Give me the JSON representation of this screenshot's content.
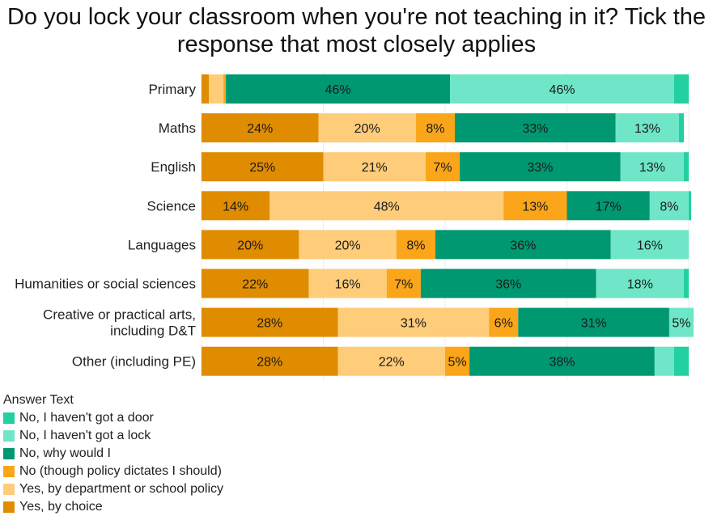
{
  "title": [
    "Do you lock your classroom when you're not teaching in it? Tick the",
    "response that most closely applies"
  ],
  "chart_data": {
    "type": "bar",
    "orientation": "horizontal",
    "stacked": true,
    "title": "Do you lock your classroom when you're not teaching in it? Tick the response that most closely applies",
    "xlim": [
      0,
      100
    ],
    "unit": "%",
    "categories": [
      "Primary",
      "Maths",
      "English",
      "Science",
      "Languages",
      "Humanities or social sciences",
      "Creative or practical arts,\nincluding D&T",
      "Other (including PE)"
    ],
    "series": [
      {
        "name": "Yes, by choice",
        "color": "#E08C00",
        "values": [
          1.5,
          24,
          25,
          14,
          20,
          22,
          28,
          28
        ],
        "labels": [
          "",
          "24%",
          "25%",
          "14%",
          "20%",
          "22%",
          "28%",
          "28%"
        ]
      },
      {
        "name": "Yes, by department or school policy",
        "color": "#FFCC7A",
        "values": [
          3,
          20,
          21,
          48,
          20,
          16,
          31,
          22
        ],
        "labels": [
          "",
          "20%",
          "21%",
          "48%",
          "20%",
          "16%",
          "31%",
          "22%"
        ]
      },
      {
        "name": "No (though policy dictates I should)",
        "color": "#FAA51A",
        "values": [
          0.5,
          8,
          7,
          13,
          8,
          7,
          6,
          5
        ],
        "labels": [
          "",
          "8%",
          "7%",
          "13%",
          "8%",
          "7%",
          "6%",
          "5%"
        ]
      },
      {
        "name": "No, why would I",
        "color": "#009870",
        "values": [
          46,
          33,
          33,
          17,
          36,
          36,
          31,
          38
        ],
        "labels": [
          "46%",
          "33%",
          "33%",
          "17%",
          "36%",
          "36%",
          "31%",
          "38%"
        ]
      },
      {
        "name": "No, I haven't got a lock",
        "color": "#6FE6C7",
        "values": [
          46,
          13,
          13,
          8,
          16,
          18,
          5,
          4
        ],
        "labels": [
          "46%",
          "13%",
          "13%",
          "8%",
          "16%",
          "18%",
          "5%",
          ""
        ]
      },
      {
        "name": "No, I haven't got a door",
        "color": "#22D0A0",
        "values": [
          3,
          1,
          1,
          0.5,
          0,
          1,
          0,
          3
        ],
        "labels": [
          "",
          "",
          "",
          "",
          "",
          "",
          "",
          ""
        ]
      }
    ],
    "legend": {
      "title": "Answer Text",
      "placement": "bottom-left"
    },
    "grid": true
  }
}
